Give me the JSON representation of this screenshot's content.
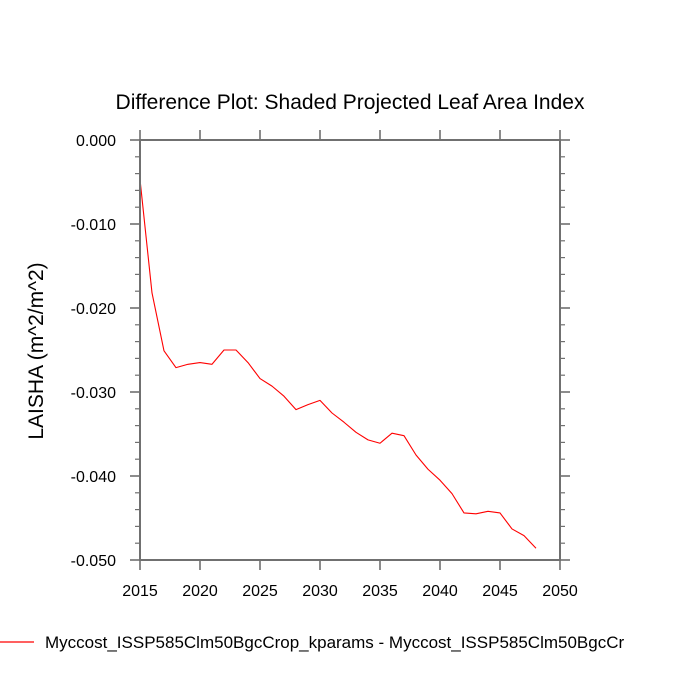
{
  "chart_data": {
    "type": "line",
    "title": "Difference Plot: Shaded Projected Leaf Area Index",
    "xlabel": "",
    "ylabel": "LAISHA  (m^2/m^2)",
    "xlim": [
      2015,
      2050
    ],
    "ylim": [
      -0.05,
      0.0
    ],
    "x_ticks": [
      2015,
      2020,
      2025,
      2030,
      2035,
      2040,
      2045,
      2050
    ],
    "x_tick_labels": [
      "2015",
      "2020",
      "2025",
      "2030",
      "2035",
      "2040",
      "2045",
      "2050"
    ],
    "y_ticks": [
      0.0,
      -0.01,
      -0.02,
      -0.03,
      -0.04,
      -0.05
    ],
    "y_tick_labels": [
      "0.000",
      "-0.010",
      "-0.020",
      "-0.030",
      "-0.040",
      "-0.050"
    ],
    "y_minor_tick_step": 0.002,
    "grid": false,
    "legend_position": "bottom-left",
    "series": [
      {
        "name": "Myccost_ISSP585Clm50BgcCrop_kparams - Myccost_ISSP585Clm50BgcCr",
        "color": "#ff0000",
        "x": [
          2015,
          2016,
          2017,
          2018,
          2019,
          2020,
          2021,
          2022,
          2023,
          2024,
          2025,
          2026,
          2027,
          2028,
          2029,
          2030,
          2031,
          2032,
          2033,
          2034,
          2035,
          2036,
          2037,
          2038,
          2039,
          2040,
          2041,
          2042,
          2043,
          2044,
          2045,
          2046,
          2047,
          2048
        ],
        "values": [
          -0.0047,
          -0.0182,
          -0.0251,
          -0.0271,
          -0.0267,
          -0.0265,
          -0.0267,
          -0.025,
          -0.025,
          -0.0265,
          -0.0284,
          -0.0293,
          -0.0305,
          -0.0321,
          -0.0315,
          -0.031,
          -0.0325,
          -0.0336,
          -0.0348,
          -0.0357,
          -0.0361,
          -0.0349,
          -0.0352,
          -0.0375,
          -0.0392,
          -0.0405,
          -0.0421,
          -0.0444,
          -0.0445,
          -0.0442,
          -0.0444,
          -0.0463,
          -0.0471,
          -0.0486
        ]
      }
    ]
  }
}
